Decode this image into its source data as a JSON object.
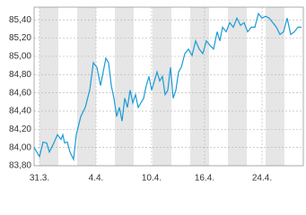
{
  "chart_data": {
    "type": "line",
    "x": [
      0,
      6,
      10,
      14,
      17,
      22,
      26,
      30,
      32,
      34,
      37,
      40,
      44,
      47,
      52,
      57,
      62,
      66,
      70,
      74,
      77,
      80,
      83,
      86,
      89,
      92,
      95,
      98,
      101,
      104,
      107,
      110,
      113,
      116,
      119,
      122,
      125,
      128,
      131,
      134,
      137,
      140,
      143,
      146,
      149,
      152,
      155,
      158,
      161,
      164,
      168,
      172,
      176,
      180,
      184,
      188,
      192,
      196,
      200,
      204,
      207,
      210,
      214,
      218,
      222,
      226,
      230,
      234,
      238,
      242,
      246,
      250,
      254,
      258,
      262,
      266,
      270,
      274,
      278,
      282,
      286,
      290,
      294,
      298
    ],
    "series": [
      {
        "color": "#1a9bd7",
        "values": [
          84.0,
          83.9,
          84.06,
          84.05,
          83.95,
          84.05,
          84.14,
          84.09,
          84.14,
          84.05,
          84.06,
          83.95,
          83.87,
          84.14,
          84.34,
          84.44,
          84.63,
          84.93,
          84.88,
          84.68,
          84.83,
          84.98,
          84.93,
          84.68,
          84.54,
          84.34,
          84.44,
          84.29,
          84.54,
          84.44,
          84.63,
          84.49,
          84.58,
          84.44,
          84.49,
          84.54,
          84.68,
          84.78,
          84.63,
          84.73,
          84.83,
          84.73,
          84.78,
          84.58,
          84.63,
          84.88,
          84.54,
          84.63,
          84.83,
          84.88,
          85.03,
          85.08,
          85.01,
          85.17,
          85.08,
          85.03,
          85.17,
          85.12,
          85.08,
          85.27,
          85.17,
          85.32,
          85.27,
          85.37,
          85.32,
          85.42,
          85.34,
          85.37,
          85.27,
          85.32,
          85.32,
          85.47,
          85.42,
          85.44,
          85.42,
          85.37,
          85.32,
          85.24,
          85.27,
          85.42,
          85.24,
          85.27,
          85.32,
          85.32
        ]
      }
    ],
    "xlim": [
      0,
      300
    ],
    "xticks": [
      {
        "value": 6,
        "label": "31.3."
      },
      {
        "value": 69,
        "label": "4.4."
      },
      {
        "value": 131,
        "label": "10.4."
      },
      {
        "value": 190,
        "label": "16.4."
      },
      {
        "value": 254,
        "label": "24.4."
      }
    ],
    "ylim": [
      83.8,
      85.54
    ],
    "yticks": [
      {
        "value": 83.8,
        "label": "83,80"
      },
      {
        "value": 84.0,
        "label": "84,00"
      },
      {
        "value": 84.2,
        "label": "84,20"
      },
      {
        "value": 84.4,
        "label": "84,40"
      },
      {
        "value": 84.6,
        "label": "84,60"
      },
      {
        "value": 84.8,
        "label": "84,80"
      },
      {
        "value": 85.0,
        "label": "85,00"
      },
      {
        "value": 85.2,
        "label": "85,20"
      },
      {
        "value": 85.4,
        "label": "85,40"
      }
    ],
    "grid": true
  }
}
